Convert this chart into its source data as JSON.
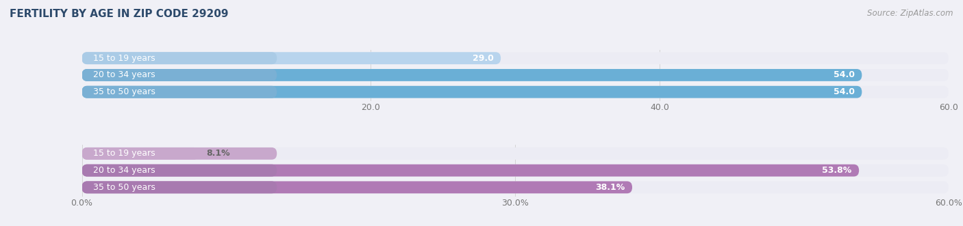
{
  "title": "FERTILITY BY AGE IN ZIP CODE 29209",
  "source": "Source: ZipAtlas.com",
  "top_section": {
    "categories": [
      "15 to 19 years",
      "20 to 34 years",
      "35 to 50 years"
    ],
    "values": [
      29.0,
      54.0,
      54.0
    ],
    "xlim": [
      0,
      60
    ],
    "xticks": [
      20.0,
      40.0,
      60.0
    ],
    "bar_color_strong": "#6aafd6",
    "bar_color_light": "#b8d4ed",
    "bar_bg_color": "#ececf4",
    "label_left_bg": "#7ab0d4",
    "label_left_bg_light": "#aacbe6",
    "label_color_inside": "#ffffff",
    "label_color_outside": "#666666",
    "value_color_inside": "#ffffff",
    "value_color_outside": "#666666"
  },
  "bottom_section": {
    "categories": [
      "15 to 19 years",
      "20 to 34 years",
      "35 to 50 years"
    ],
    "values": [
      8.1,
      53.8,
      38.1
    ],
    "xlim": [
      0,
      60
    ],
    "xticks": [
      0,
      30.0,
      60.0
    ],
    "xtick_labels": [
      "0.0%",
      "30.0%",
      "60.0%"
    ],
    "bar_color_strong": "#b07ab5",
    "bar_color_light": "#cfaad4",
    "bar_bg_color": "#ececf4",
    "label_left_bg": "#a87ab0",
    "label_left_bg_light": "#c8a8cc",
    "label_color_inside": "#ffffff",
    "label_color_outside": "#666666",
    "value_color_inside": "#ffffff",
    "value_color_outside": "#666666"
  },
  "page_bg_color": "#f0f0f6",
  "title_color": "#2d4a6b",
  "source_color": "#999999",
  "label_fontsize": 9,
  "tick_fontsize": 9,
  "title_fontsize": 11,
  "source_fontsize": 8.5,
  "category_fontsize": 9
}
